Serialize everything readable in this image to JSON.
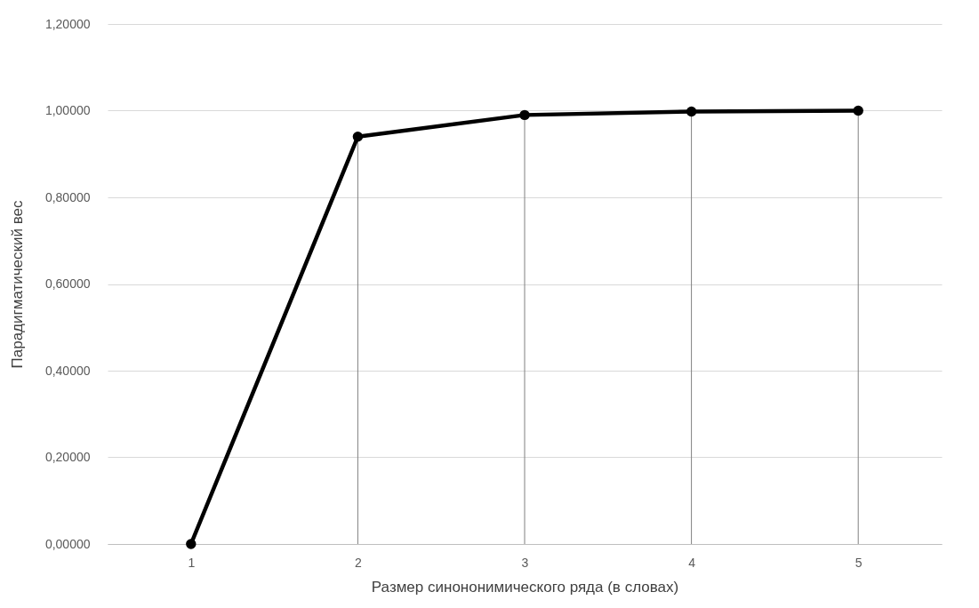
{
  "chart_data": {
    "type": "line",
    "xlabel": "Размер синононимического ряда (в словах)",
    "ylabel": "Парадигматический вес",
    "categories": [
      "1",
      "2",
      "3",
      "4",
      "5"
    ],
    "series": [
      {
        "color": "#000000",
        "values": [
          0,
          0.94,
          0.99,
          0.998,
          1.0
        ]
      }
    ],
    "ylim": [
      0,
      1.2
    ],
    "yticks": [
      {
        "value": 0,
        "label": "0,00000"
      },
      {
        "value": 0.2,
        "label": "0,20000"
      },
      {
        "value": 0.4,
        "label": "0,40000"
      },
      {
        "value": 0.6,
        "label": "0,60000"
      },
      {
        "value": 0.8,
        "label": "0,80000"
      },
      {
        "value": 1.0,
        "label": "1,00000"
      },
      {
        "value": 1.2,
        "label": "1,20000"
      }
    ],
    "grid": true,
    "marker": "circle",
    "line_style": "solid",
    "legend": false
  }
}
